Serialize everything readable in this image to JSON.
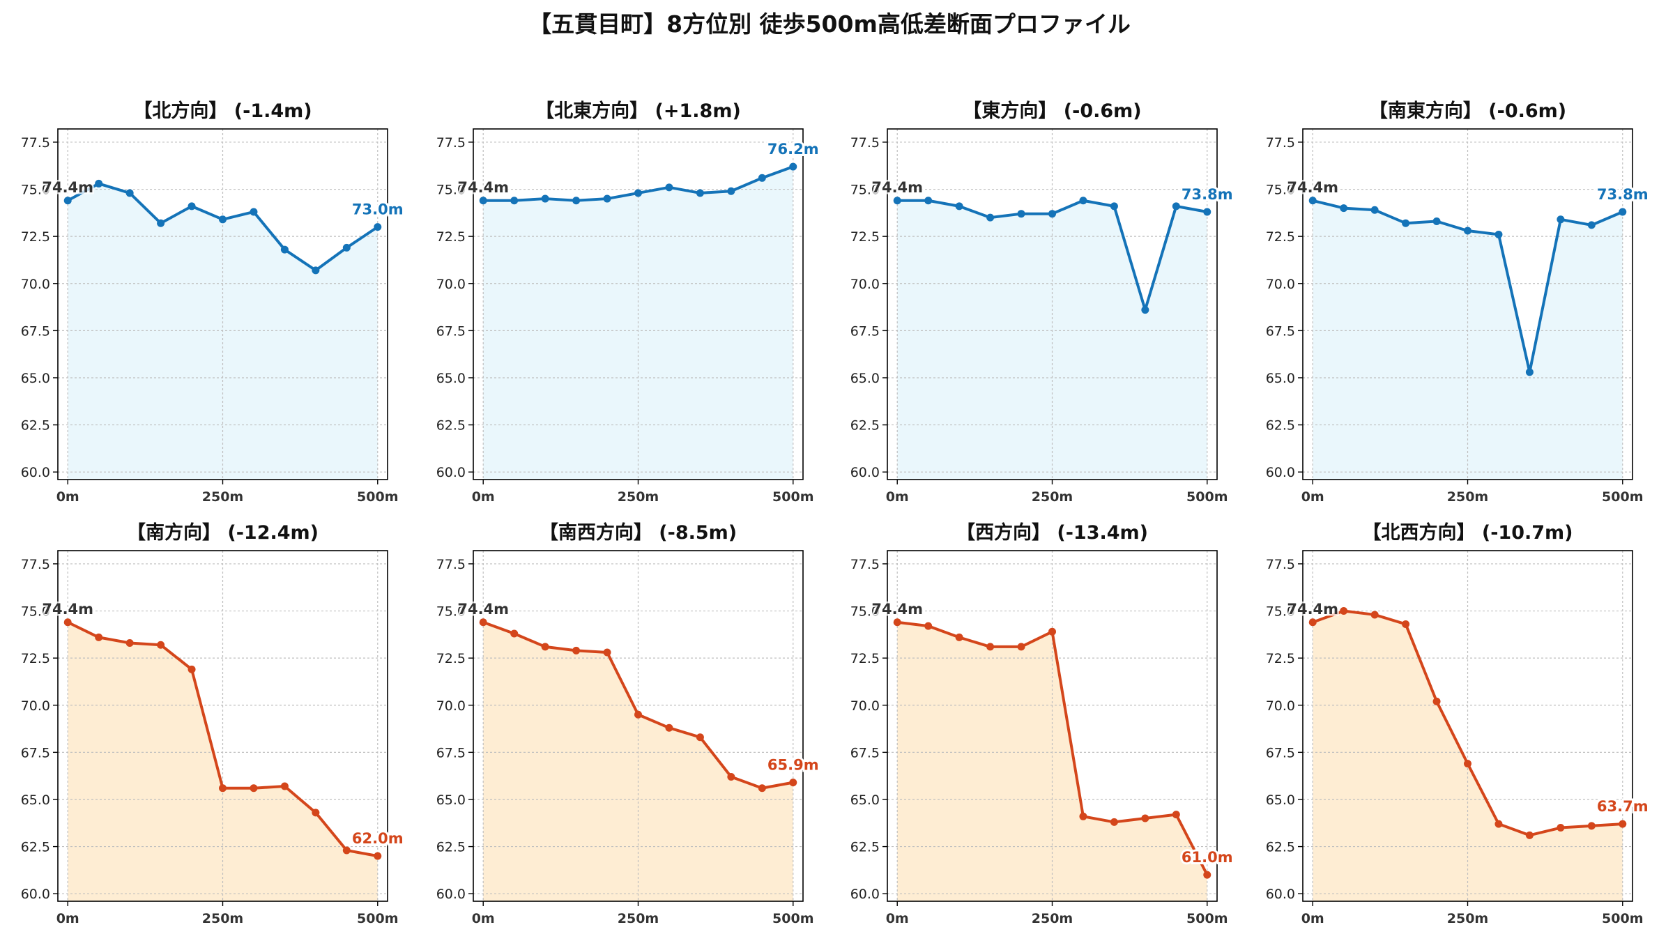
{
  "title": "【五貫目町】8方位別 徒歩500m高低差断面プロファイル",
  "colors": {
    "up_line": "#1473b8",
    "up_fill": "#eaf7fc",
    "down_line": "#d4461b",
    "down_fill": "#feedd3"
  },
  "chart_data": [
    {
      "type": "area",
      "title": "【北方向】 (-1.4m)",
      "x": [
        0,
        50,
        100,
        150,
        200,
        250,
        300,
        350,
        400,
        450,
        500
      ],
      "values": [
        74.4,
        75.3,
        74.8,
        73.2,
        74.1,
        73.4,
        73.8,
        71.8,
        70.7,
        71.9,
        73.0
      ],
      "xticks": [
        "0m",
        "250m",
        "500m"
      ],
      "yticks": [
        "60.0",
        "62.5",
        "65.0",
        "67.5",
        "70.0",
        "72.5",
        "75.0",
        "77.5"
      ],
      "ylim": [
        59.6,
        78.2
      ],
      "start_label": "74.4m",
      "end_label": "73.0m",
      "trend": "up",
      "grid": true
    },
    {
      "type": "area",
      "title": "【北東方向】 (+1.8m)",
      "x": [
        0,
        50,
        100,
        150,
        200,
        250,
        300,
        350,
        400,
        450,
        500
      ],
      "values": [
        74.4,
        74.4,
        74.5,
        74.4,
        74.5,
        74.8,
        75.1,
        74.8,
        74.9,
        75.6,
        76.2
      ],
      "xticks": [
        "0m",
        "250m",
        "500m"
      ],
      "yticks": [
        "60.0",
        "62.5",
        "65.0",
        "67.5",
        "70.0",
        "72.5",
        "75.0",
        "77.5"
      ],
      "ylim": [
        59.6,
        78.2
      ],
      "start_label": "74.4m",
      "end_label": "76.2m",
      "trend": "up",
      "grid": true
    },
    {
      "type": "area",
      "title": "【東方向】 (-0.6m)",
      "x": [
        0,
        50,
        100,
        150,
        200,
        250,
        300,
        350,
        400,
        450,
        500
      ],
      "values": [
        74.4,
        74.4,
        74.1,
        73.5,
        73.7,
        73.7,
        74.4,
        74.1,
        68.6,
        74.1,
        73.8
      ],
      "xticks": [
        "0m",
        "250m",
        "500m"
      ],
      "yticks": [
        "60.0",
        "62.5",
        "65.0",
        "67.5",
        "70.0",
        "72.5",
        "75.0",
        "77.5"
      ],
      "ylim": [
        59.6,
        78.2
      ],
      "start_label": "74.4m",
      "end_label": "73.8m",
      "trend": "up",
      "grid": true
    },
    {
      "type": "area",
      "title": "【南東方向】 (-0.6m)",
      "x": [
        0,
        50,
        100,
        150,
        200,
        250,
        300,
        350,
        400,
        450,
        500
      ],
      "values": [
        74.4,
        74.0,
        73.9,
        73.2,
        73.3,
        72.8,
        72.6,
        65.3,
        73.4,
        73.1,
        73.8
      ],
      "xticks": [
        "0m",
        "250m",
        "500m"
      ],
      "yticks": [
        "60.0",
        "62.5",
        "65.0",
        "67.5",
        "70.0",
        "72.5",
        "75.0",
        "77.5"
      ],
      "ylim": [
        59.6,
        78.2
      ],
      "start_label": "74.4m",
      "end_label": "73.8m",
      "trend": "up",
      "grid": true
    },
    {
      "type": "area",
      "title": "【南方向】 (-12.4m)",
      "x": [
        0,
        50,
        100,
        150,
        200,
        250,
        300,
        350,
        400,
        450,
        500
      ],
      "values": [
        74.4,
        73.6,
        73.3,
        73.2,
        71.9,
        65.6,
        65.6,
        65.7,
        64.3,
        62.3,
        62.0
      ],
      "xticks": [
        "0m",
        "250m",
        "500m"
      ],
      "yticks": [
        "60.0",
        "62.5",
        "65.0",
        "67.5",
        "70.0",
        "72.5",
        "75.0",
        "77.5"
      ],
      "ylim": [
        59.6,
        78.2
      ],
      "start_label": "74.4m",
      "end_label": "62.0m",
      "trend": "down",
      "grid": true
    },
    {
      "type": "area",
      "title": "【南西方向】 (-8.5m)",
      "x": [
        0,
        50,
        100,
        150,
        200,
        250,
        300,
        350,
        400,
        450,
        500
      ],
      "values": [
        74.4,
        73.8,
        73.1,
        72.9,
        72.8,
        69.5,
        68.8,
        68.3,
        66.2,
        65.6,
        65.9
      ],
      "xticks": [
        "0m",
        "250m",
        "500m"
      ],
      "yticks": [
        "60.0",
        "62.5",
        "65.0",
        "67.5",
        "70.0",
        "72.5",
        "75.0",
        "77.5"
      ],
      "ylim": [
        59.6,
        78.2
      ],
      "start_label": "74.4m",
      "end_label": "65.9m",
      "trend": "down",
      "grid": true
    },
    {
      "type": "area",
      "title": "【西方向】 (-13.4m)",
      "x": [
        0,
        50,
        100,
        150,
        200,
        250,
        300,
        350,
        400,
        450,
        500
      ],
      "values": [
        74.4,
        74.2,
        73.6,
        73.1,
        73.1,
        73.9,
        64.1,
        63.8,
        64.0,
        64.2,
        61.0
      ],
      "xticks": [
        "0m",
        "250m",
        "500m"
      ],
      "yticks": [
        "60.0",
        "62.5",
        "65.0",
        "67.5",
        "70.0",
        "72.5",
        "75.0",
        "77.5"
      ],
      "ylim": [
        59.6,
        78.2
      ],
      "start_label": "74.4m",
      "end_label": "61.0m",
      "trend": "down",
      "grid": true
    },
    {
      "type": "area",
      "title": "【北西方向】 (-10.7m)",
      "x": [
        0,
        50,
        100,
        150,
        200,
        250,
        300,
        350,
        400,
        450,
        500
      ],
      "values": [
        74.4,
        75.0,
        74.8,
        74.3,
        70.2,
        66.9,
        63.7,
        63.1,
        63.5,
        63.6,
        63.7
      ],
      "xticks": [
        "0m",
        "250m",
        "500m"
      ],
      "yticks": [
        "60.0",
        "62.5",
        "65.0",
        "67.5",
        "70.0",
        "72.5",
        "75.0",
        "77.5"
      ],
      "ylim": [
        59.6,
        78.2
      ],
      "start_label": "74.4m",
      "end_label": "63.7m",
      "trend": "down",
      "grid": true
    }
  ]
}
